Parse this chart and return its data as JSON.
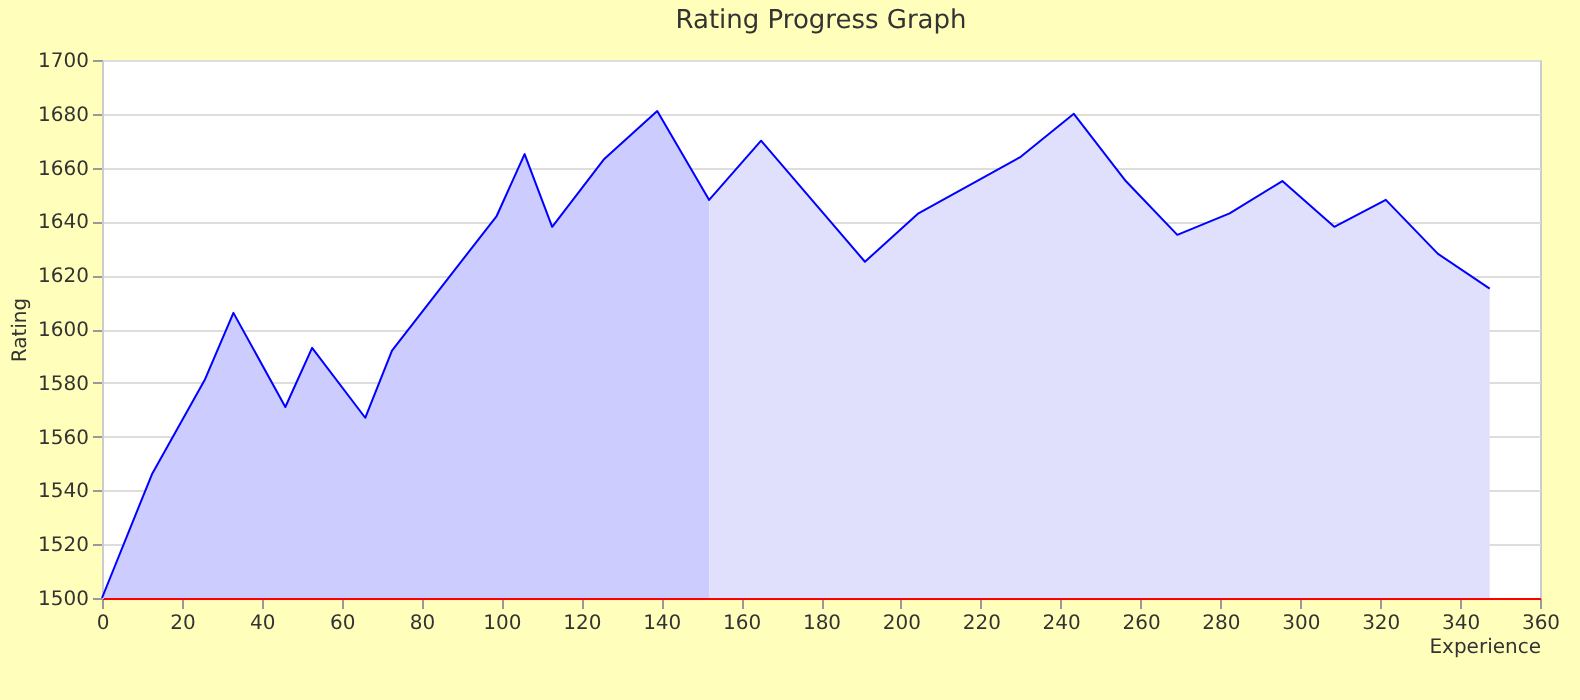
{
  "chart_data": {
    "type": "area",
    "title": "Rating Progress Graph",
    "xlabel": "Experience",
    "ylabel": "Rating",
    "series": [
      {
        "color": "#ccccff",
        "x": [
          0,
          12.5,
          25.7,
          32.9,
          45.9,
          52.6,
          65.9,
          72.6,
          98.8,
          105.8,
          112.7,
          125.6,
          139,
          152
        ],
        "values": [
          1500,
          1546,
          1581,
          1606,
          1571,
          1593,
          1567,
          1592,
          1642,
          1665,
          1638,
          1663,
          1681,
          1648
        ]
      },
      {
        "color": "#e0e0fc",
        "x": [
          152,
          165,
          191,
          204.4,
          230,
          243.3,
          256.3,
          269.2,
          282.3,
          295.5,
          308.5,
          321.4,
          334.4,
          347.4
        ],
        "values": [
          1648,
          1670,
          1625,
          1643,
          1664,
          1680,
          1655,
          1635,
          1643,
          1655,
          1638,
          1648,
          1628,
          1615
        ]
      },
      {
        "type": "line",
        "color": "#0000ff",
        "x": [
          0,
          12.5,
          25.7,
          32.9,
          45.9,
          52.6,
          65.9,
          72.6,
          98.8,
          105.8,
          112.7,
          125.6,
          139,
          152,
          165,
          191,
          204.4,
          230,
          243.3,
          256.3,
          269.2,
          282.3,
          295.5,
          308.5,
          321.4,
          334.4,
          347.4
        ],
        "values": [
          1500,
          1546,
          1581,
          1606,
          1571,
          1593,
          1567,
          1592,
          1642,
          1665,
          1638,
          1663,
          1681,
          1648,
          1670,
          1625,
          1643,
          1664,
          1680,
          1655,
          1635,
          1643,
          1655,
          1638,
          1648,
          1628,
          1615
        ]
      }
    ],
    "xlim": [
      0,
      360
    ],
    "xticks": [
      0,
      20,
      40,
      60,
      80,
      100,
      120,
      140,
      160,
      180,
      200,
      220,
      240,
      260,
      280,
      300,
      320,
      340,
      360
    ],
    "ylim": [
      1500,
      1700
    ],
    "yticks": [
      1500,
      1520,
      1540,
      1560,
      1580,
      1600,
      1620,
      1640,
      1660,
      1680,
      1700
    ],
    "grid": "y",
    "marker": "none",
    "line_style": "solid"
  }
}
